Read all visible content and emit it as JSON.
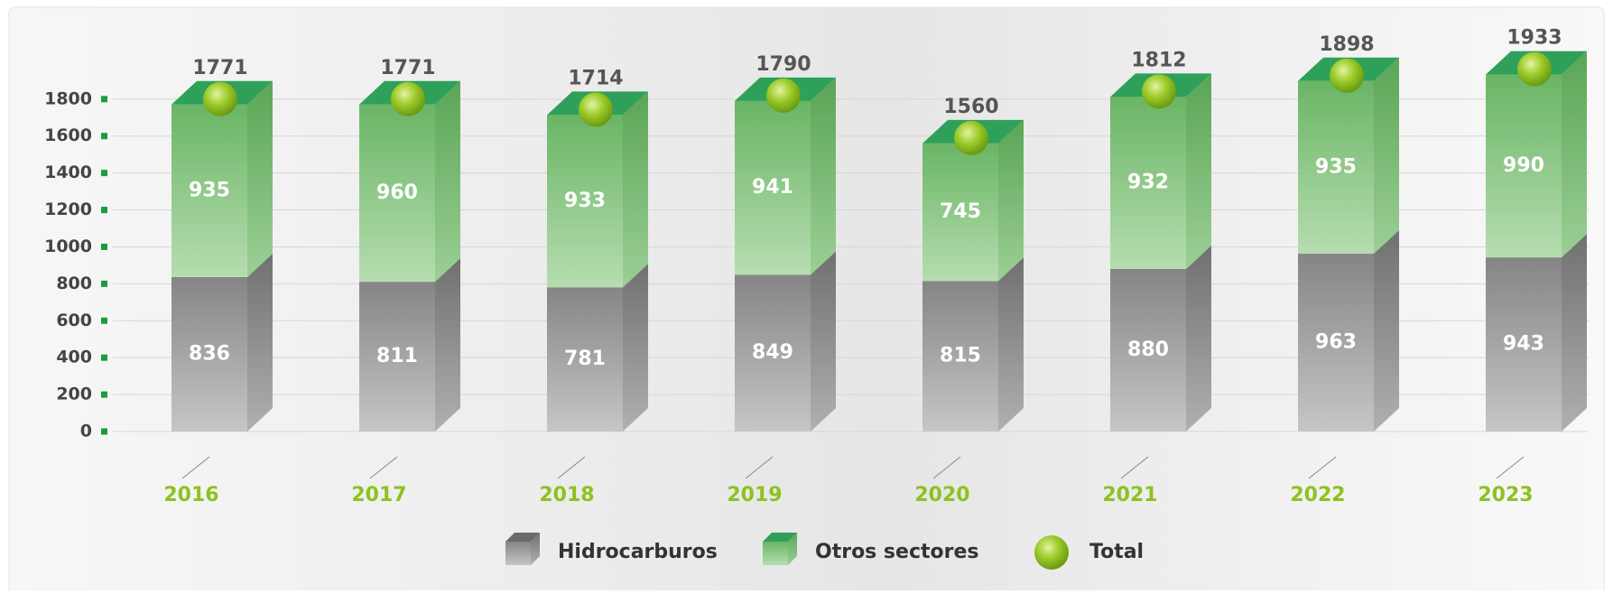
{
  "chart_data": {
    "type": "stacked-bar-3d",
    "categories": [
      "2016",
      "2017",
      "2018",
      "2019",
      "2020",
      "2021",
      "2022",
      "2023"
    ],
    "series": [
      {
        "name": "Hidrocarburos",
        "color": "#8c8c8c",
        "values": [
          836,
          811,
          781,
          849,
          815,
          880,
          963,
          943
        ]
      },
      {
        "name": "Otros sectores",
        "color": "#6fb96c",
        "values": [
          935,
          960,
          933,
          941,
          745,
          932,
          935,
          990
        ]
      }
    ],
    "total": {
      "name": "Total",
      "color": "#8dc21f",
      "values": [
        1771,
        1771,
        1714,
        1790,
        1560,
        1812,
        1898,
        1933
      ]
    },
    "ylim": [
      0,
      2200
    ],
    "yticks": [
      0,
      200,
      400,
      600,
      800,
      1000,
      1200,
      1400,
      1600,
      1800
    ],
    "grid": true
  }
}
